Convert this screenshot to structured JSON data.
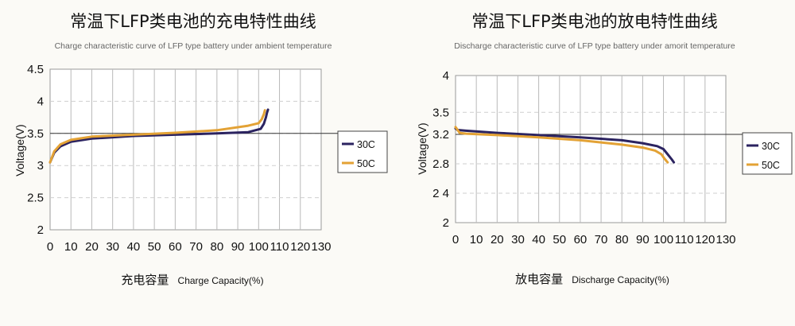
{
  "chart_data": [
    {
      "type": "line",
      "title": "常温下LFP类电池的充电特性曲线",
      "subtitle": "Charge characteristic curve of LFP type battery under ambient temperature",
      "ylabel": "Voltage(V)",
      "xlabel_cn": "充电容量",
      "xlabel_en": "Charge Capacity(%)",
      "xlim": [
        0,
        130
      ],
      "ylim": [
        2,
        4.5
      ],
      "x_ticks": [
        "0",
        "10",
        "20",
        "30",
        "40",
        "50",
        "60",
        "70",
        "80",
        "90",
        "100",
        "110",
        "120",
        "130"
      ],
      "y_ticks": [
        "2",
        "2.5",
        "3",
        "3.5",
        "4",
        "4.5"
      ],
      "y_tick_values": [
        2,
        2.5,
        3,
        3.5,
        4,
        4.5
      ],
      "grid": true,
      "legend_position": "right",
      "series": [
        {
          "name": "30C",
          "color": "#2b2360",
          "x": [
            0,
            2,
            5,
            10,
            20,
            40,
            60,
            80,
            95,
            101,
            102.5,
            103.5,
            104,
            104.5
          ],
          "y": [
            3.05,
            3.2,
            3.3,
            3.37,
            3.42,
            3.46,
            3.48,
            3.5,
            3.52,
            3.57,
            3.65,
            3.75,
            3.82,
            3.87
          ]
        },
        {
          "name": "50C",
          "color": "#e3a235",
          "x": [
            0,
            2,
            5,
            10,
            20,
            40,
            60,
            80,
            95,
            100,
            101.5,
            102.5,
            103
          ],
          "y": [
            3.05,
            3.22,
            3.33,
            3.4,
            3.45,
            3.48,
            3.51,
            3.55,
            3.62,
            3.66,
            3.72,
            3.8,
            3.86
          ]
        }
      ]
    },
    {
      "type": "line",
      "title": "常温下LFP类电池的放电特性曲线",
      "subtitle": "Discharge characteristic curve of LFP type battery under amorit temperature",
      "ylabel": "Voltage(V)",
      "xlabel_cn": "放电容量",
      "xlabel_en": "Discharge Capacity(%)",
      "xlim": [
        0,
        130
      ],
      "ylim": [
        2,
        4
      ],
      "x_ticks": [
        "0",
        "10",
        "20",
        "30",
        "40",
        "50",
        "60",
        "70",
        "80",
        "90",
        "100",
        "110",
        "120",
        "130"
      ],
      "y_ticks": [
        "2",
        "2 4",
        "2.8",
        "3.2",
        "3.5",
        "4"
      ],
      "y_tick_values": [
        2,
        2.4,
        2.8,
        3.2,
        3.5,
        4
      ],
      "grid": true,
      "legend_position": "right",
      "series": [
        {
          "name": "30C",
          "color": "#2b2360",
          "x": [
            0,
            1,
            5,
            20,
            40,
            60,
            80,
            90,
            97,
            100,
            102,
            104,
            105
          ],
          "y": [
            3.28,
            3.26,
            3.25,
            3.22,
            3.19,
            3.16,
            3.12,
            3.08,
            3.04,
            3.0,
            2.93,
            2.86,
            2.82
          ]
        },
        {
          "name": "50C",
          "color": "#e3a235",
          "x": [
            0,
            2,
            5,
            20,
            40,
            60,
            80,
            90,
            96,
            99,
            100.5,
            102
          ],
          "y": [
            3.3,
            3.22,
            3.21,
            3.19,
            3.16,
            3.12,
            3.06,
            3.02,
            2.98,
            2.93,
            2.87,
            2.82
          ]
        }
      ]
    }
  ]
}
